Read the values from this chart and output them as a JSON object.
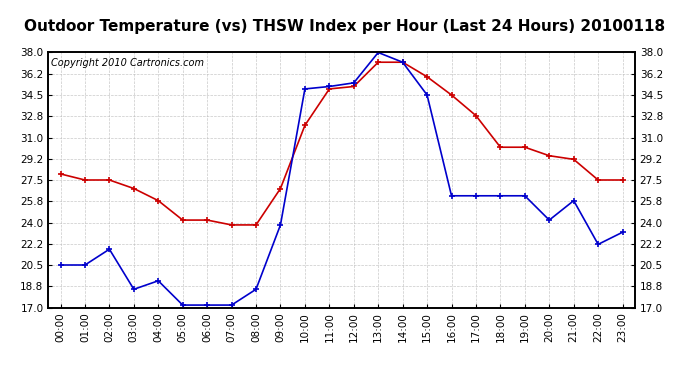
{
  "title": "Outdoor Temperature (vs) THSW Index per Hour (Last 24 Hours) 20100118",
  "copyright": "Copyright 2010 Cartronics.com",
  "hours": [
    "00:00",
    "01:00",
    "02:00",
    "03:00",
    "04:00",
    "05:00",
    "06:00",
    "07:00",
    "08:00",
    "09:00",
    "10:00",
    "11:00",
    "12:00",
    "13:00",
    "14:00",
    "15:00",
    "16:00",
    "17:00",
    "18:00",
    "19:00",
    "20:00",
    "21:00",
    "22:00",
    "23:00"
  ],
  "temp_red": [
    28.0,
    27.5,
    27.5,
    26.8,
    25.8,
    24.2,
    24.2,
    23.8,
    23.8,
    26.8,
    32.0,
    35.0,
    35.2,
    37.2,
    37.2,
    36.0,
    34.5,
    32.8,
    30.2,
    30.2,
    29.5,
    29.2,
    27.5,
    27.5
  ],
  "thsw_blue": [
    20.5,
    20.5,
    21.8,
    18.5,
    19.2,
    17.2,
    17.2,
    17.2,
    18.5,
    23.8,
    35.0,
    35.2,
    35.5,
    38.0,
    37.2,
    34.5,
    26.2,
    26.2,
    26.2,
    26.2,
    24.2,
    25.8,
    22.2,
    23.2
  ],
  "ylim_min": 17.0,
  "ylim_max": 38.0,
  "yticks": [
    17.0,
    18.8,
    20.5,
    22.2,
    24.0,
    25.8,
    27.5,
    29.2,
    31.0,
    32.8,
    34.5,
    36.2,
    38.0
  ],
  "background_color": "#ffffff",
  "grid_color": "#bbbbbb",
  "red_color": "#cc0000",
  "blue_color": "#0000cc",
  "title_fontsize": 11,
  "copyright_fontsize": 7
}
